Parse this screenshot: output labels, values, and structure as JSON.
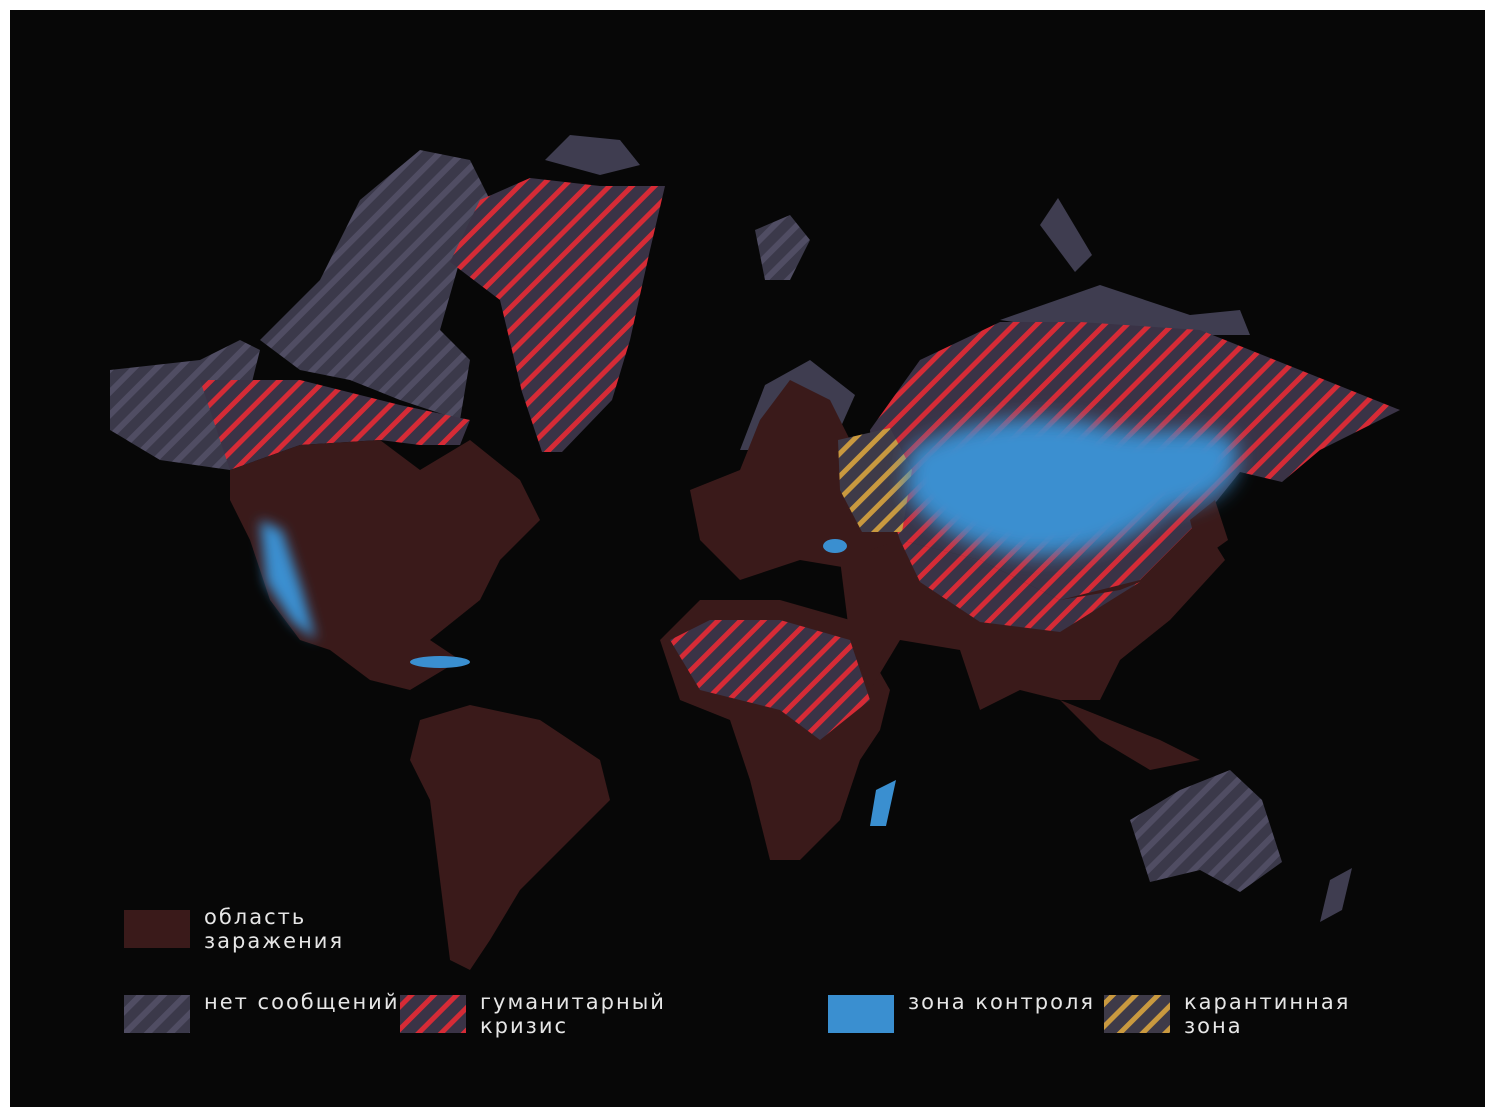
{
  "legend": [
    {
      "label_lines": [
        "область",
        "заражения"
      ]
    },
    {
      "label_lines": [
        "нет сообщений"
      ]
    },
    {
      "label_lines": [
        "гуманитарный",
        "кризис"
      ]
    },
    {
      "label_lines": [
        "зона контроля"
      ]
    },
    {
      "label_lines": [
        "карантинная",
        "зона"
      ]
    }
  ]
}
